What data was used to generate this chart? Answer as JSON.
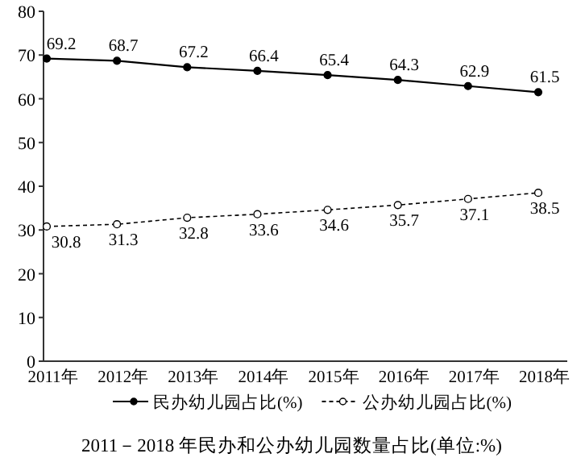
{
  "chart_data": {
    "type": "line",
    "title": "2011－2018 年民办和公办幼儿园数量占比(单位:%)",
    "categories": [
      "2011年",
      "2012年",
      "2013年",
      "2014年",
      "2015年",
      "2016年",
      "2017年",
      "2018年"
    ],
    "series": [
      {
        "name": "民办幼儿园占比(%)",
        "color": "#000000",
        "values": [
          69.2,
          68.7,
          67.2,
          66.4,
          65.4,
          64.3,
          62.9,
          61.5
        ],
        "line_style": "solid"
      },
      {
        "name": "公办幼儿园占比(%)",
        "color": "#000000",
        "values": [
          30.8,
          31.3,
          32.8,
          33.6,
          34.6,
          35.7,
          37.1,
          38.5
        ],
        "line_style": "dashed"
      }
    ],
    "ylim": [
      0,
      80
    ],
    "yticks": [
      0,
      10,
      20,
      30,
      40,
      50,
      60,
      70,
      80
    ],
    "data_labels": true,
    "legend": "bottom",
    "marker": "circle",
    "grid": false
  }
}
